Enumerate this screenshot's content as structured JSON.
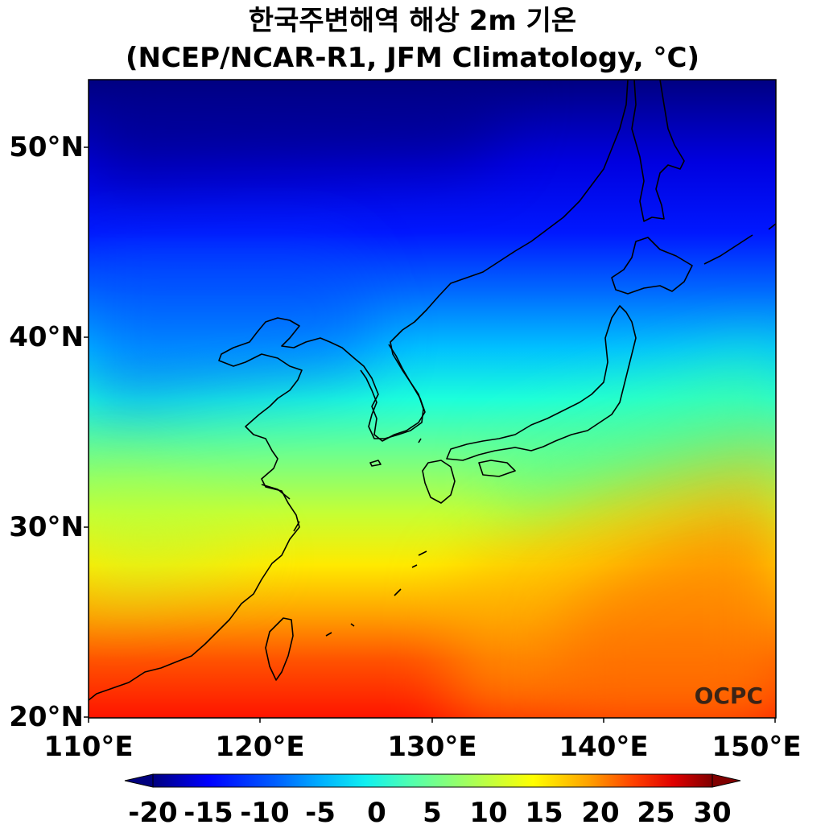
{
  "title": {
    "line1": "한국주변해역 해상 2m 기온",
    "line2": "(NCEP/NCAR-R1, JFM Climatology, °C)"
  },
  "map": {
    "region": "Korea / Japan / East China Sea",
    "lon_range": [
      110,
      150
    ],
    "lat_range": [
      20,
      53.5
    ],
    "lat_ticks": [
      "20°N",
      "30°N",
      "40°N",
      "50°N"
    ],
    "lon_ticks": [
      "110°E",
      "120°E",
      "130°E",
      "140°E",
      "150°E"
    ],
    "watermark": "OCPC"
  },
  "colorbar": {
    "min": -20,
    "max": 30,
    "extend": "both",
    "ticks": [
      "-20",
      "-15",
      "-10",
      "-5",
      "0",
      "5",
      "10",
      "15",
      "20",
      "25",
      "30"
    ],
    "colormap": [
      "#00007f",
      "#0000ff",
      "#007fff",
      "#00e5ff",
      "#3dffba",
      "#7fff7f",
      "#baff3d",
      "#ffff00",
      "#ffaa00",
      "#ff4400",
      "#e50000",
      "#7f0000"
    ]
  }
}
